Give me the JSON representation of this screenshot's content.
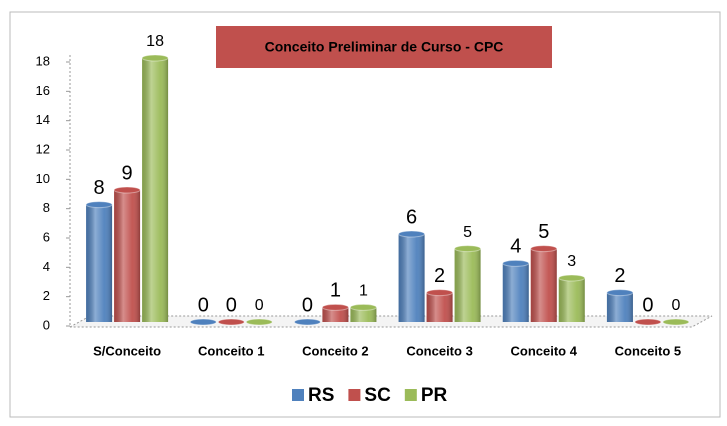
{
  "chart_data": {
    "type": "bar",
    "title": "Conceito Preliminar de Curso - CPC",
    "categories": [
      "S/Conceito",
      "Conceito 1",
      "Conceito 2",
      "Conceito 3",
      "Conceito 4",
      "Conceito 5"
    ],
    "series": [
      {
        "name": "RS",
        "color": "#4f81bd",
        "values": [
          8,
          0,
          0,
          6,
          4,
          2
        ]
      },
      {
        "name": "SC",
        "color": "#c0504d",
        "values": [
          9,
          0,
          1,
          2,
          5,
          0
        ]
      },
      {
        "name": "PR",
        "color": "#9bbb59",
        "values": [
          18,
          0,
          1,
          5,
          3,
          0
        ]
      }
    ],
    "ylim": [
      0,
      18
    ],
    "yticks": [
      0,
      2,
      4,
      6,
      8,
      10,
      12,
      14,
      16,
      18
    ],
    "legend": "bottom"
  }
}
